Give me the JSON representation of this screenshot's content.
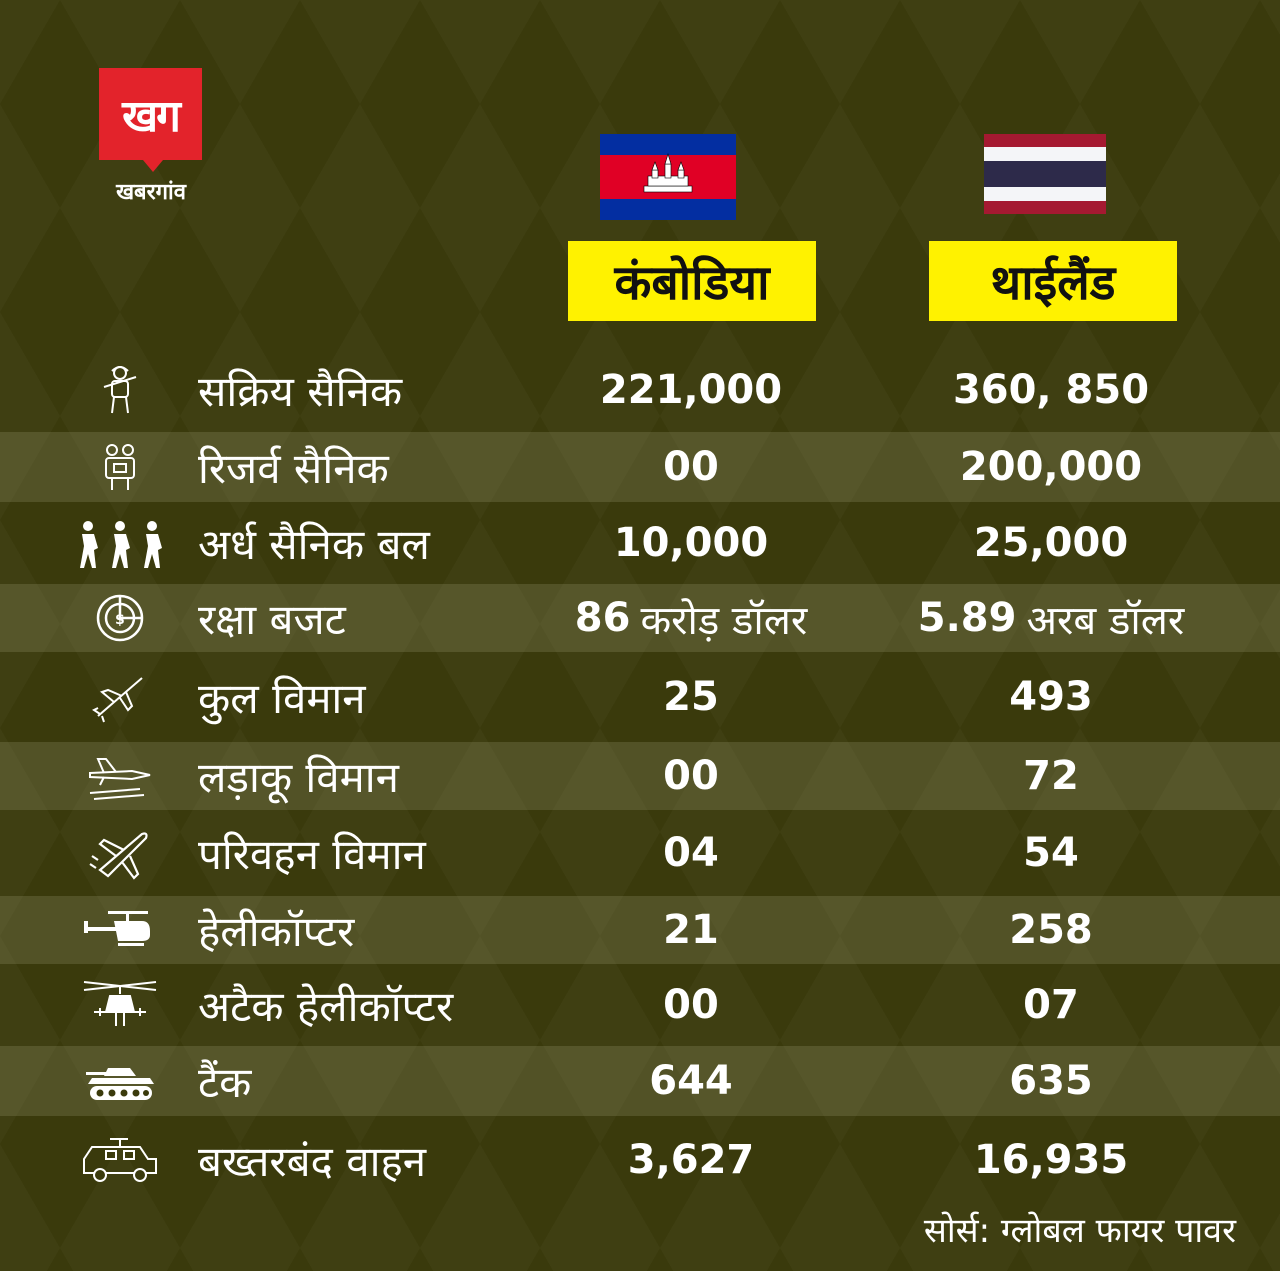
{
  "brand": {
    "mark": "खग",
    "name": "खबरगांव",
    "color": "#e3232b"
  },
  "countries": {
    "cambodia": {
      "name": "कंबोडिया",
      "flag_icon": "cambodia-flag-icon"
    },
    "thailand": {
      "name": "थाईलैंड",
      "flag_icon": "thailand-flag-icon"
    }
  },
  "rows": [
    {
      "label": "सक्रिय सैनिक",
      "icon": "soldier-icon",
      "cambodia": "221,000",
      "thailand": "360, 850"
    },
    {
      "label": "रिजर्व सैनिक",
      "icon": "reserve-soldiers-icon",
      "cambodia": "00",
      "thailand": "200,000"
    },
    {
      "label": "अर्ध सैनिक बल",
      "icon": "paramilitary-icon",
      "cambodia": "10,000",
      "thailand": "25,000"
    },
    {
      "label": "रक्षा बजट",
      "icon": "budget-icon",
      "cambodia": "86",
      "cambodia_unit": "करोड़ डॉलर",
      "thailand": "5.89",
      "thailand_unit": "अरब डॉलर"
    },
    {
      "label": "कुल विमान",
      "icon": "aircraft-icon",
      "cambodia": "25",
      "thailand": "493"
    },
    {
      "label": "लड़ाकू विमान",
      "icon": "fighter-jet-icon",
      "cambodia": "00",
      "thailand": "72"
    },
    {
      "label": "परिवहन विमान",
      "icon": "transport-plane-icon",
      "cambodia": "04",
      "thailand": "54"
    },
    {
      "label": "हेलीकॉप्टर",
      "icon": "helicopter-icon",
      "cambodia": "21",
      "thailand": "258"
    },
    {
      "label": "अटैक हेलीकॉप्टर",
      "icon": "attack-helicopter-icon",
      "cambodia": "00",
      "thailand": "07"
    },
    {
      "label": "टैंक",
      "icon": "tank-icon",
      "cambodia": "644",
      "thailand": "635"
    },
    {
      "label": "बख्तरबंद वाहन",
      "icon": "armored-vehicle-icon",
      "cambodia": "3,627",
      "thailand": "16,935"
    }
  ],
  "source": "सोर्स: ग्लोबल फायर पावर",
  "colors": {
    "background": "#3a3a0c",
    "highlight": "#fff200",
    "row_shade": "#5a5a2c"
  }
}
